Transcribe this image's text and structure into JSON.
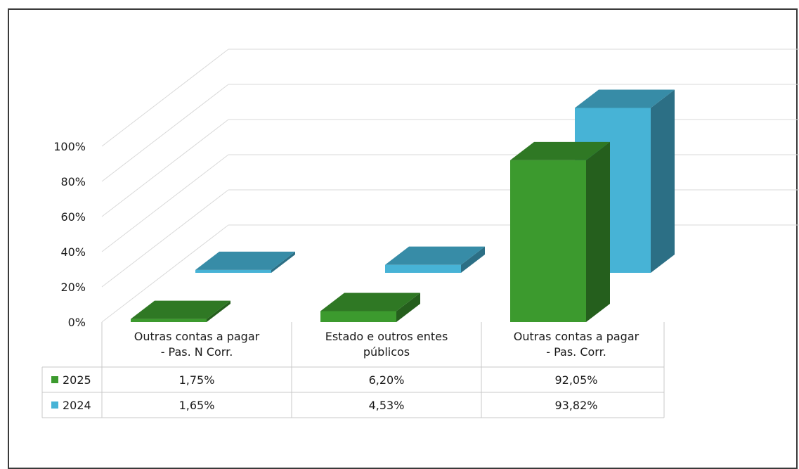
{
  "chart_data": {
    "type": "bar",
    "variant": "3d-clustered-column-with-data-table",
    "title": "",
    "xlabel": "",
    "ylabel": "",
    "ylim": [
      0,
      100
    ],
    "y_ticks": [
      "0%",
      "20%",
      "40%",
      "60%",
      "80%",
      "100%"
    ],
    "grid": true,
    "legend": "data-table",
    "categories": [
      [
        "Outras contas a pagar",
        "- Pas. N Corr."
      ],
      [
        "Estado e outros entes",
        "públicos"
      ],
      [
        "Outras contas a pagar",
        "- Pas. Corr."
      ]
    ],
    "series": [
      {
        "name": "2025",
        "color": "#3c9a2e",
        "values": [
          1.75,
          6.2,
          92.05
        ],
        "labels": [
          "1,75%",
          "6,20%",
          "92,05%"
        ]
      },
      {
        "name": "2024",
        "color": "#47b3d6",
        "values": [
          1.65,
          4.53,
          93.82
        ],
        "labels": [
          "1,65%",
          "4,53%",
          "93,82%"
        ]
      }
    ]
  }
}
